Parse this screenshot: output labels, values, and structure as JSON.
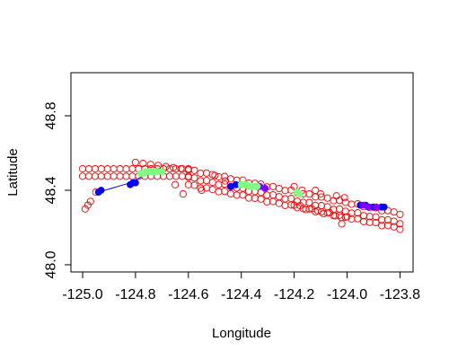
{
  "chart_data": {
    "type": "scatter",
    "title": "",
    "xlabel": "Longitude",
    "ylabel": "Latitude",
    "xlim": [
      -125.03,
      -123.78
    ],
    "ylim": [
      47.96,
      49.02
    ],
    "x_ticks": [
      -125.0,
      -124.8,
      -124.6,
      -124.4,
      -124.2,
      -124.0,
      -123.8
    ],
    "x_tick_labels": [
      "-125.0",
      "-124.8",
      "-124.6",
      "-124.4",
      "-124.2",
      "-124.0",
      "-123.8"
    ],
    "y_ticks": [
      48.0,
      48.4,
      48.8
    ],
    "y_tick_labels": [
      "48.0",
      "48.4",
      "48.8"
    ],
    "grid": false,
    "legend": "none",
    "colors": {
      "red": "#ff0000",
      "blue": "#0000ff",
      "purple": "#8000ff",
      "green": "#80ff80"
    },
    "series": [
      {
        "marker": "open-circle",
        "color": "#ff0000",
        "tracks": [
          {
            "x_start": -125.0,
            "x_end": -124.6,
            "y_start": 48.515,
            "y_end": 48.515,
            "n": 18,
            "jitter": 0.0
          },
          {
            "x_start": -125.0,
            "x_end": -124.6,
            "y_start": 48.475,
            "y_end": 48.475,
            "n": 18,
            "jitter": 0.0
          },
          {
            "x_start": -124.6,
            "x_end": -123.8,
            "y_start": 48.51,
            "y_end": 48.275,
            "n": 36,
            "jitter": 0.005
          },
          {
            "x_start": -124.6,
            "x_end": -123.8,
            "y_start": 48.47,
            "y_end": 48.225,
            "n": 36,
            "jitter": 0.005
          },
          {
            "x_start": -124.6,
            "x_end": -123.8,
            "y_start": 48.43,
            "y_end": 48.195,
            "n": 36,
            "jitter": 0.005
          },
          {
            "x_start": -124.8,
            "x_end": -124.6,
            "y_start": 48.55,
            "y_end": 48.51,
            "n": 8,
            "jitter": 0.0
          },
          {
            "x_start": -124.2,
            "x_end": -124.0,
            "y_start": 48.32,
            "y_end": 48.25,
            "n": 10,
            "jitter": 0.008
          }
        ],
        "points": [
          [
            -124.99,
            48.3
          ],
          [
            -124.98,
            48.32
          ],
          [
            -124.97,
            48.34
          ],
          [
            -124.95,
            48.39
          ],
          [
            -124.65,
            48.43
          ],
          [
            -124.62,
            48.38
          ],
          [
            -124.55,
            48.4
          ],
          [
            -124.5,
            48.48
          ],
          [
            -124.46,
            48.45
          ],
          [
            -124.2,
            48.42
          ],
          [
            -124.17,
            48.4
          ],
          [
            -124.12,
            48.4
          ],
          [
            -124.1,
            48.38
          ],
          [
            -124.04,
            48.37
          ],
          [
            -124.01,
            48.36
          ],
          [
            -124.02,
            48.22
          ]
        ]
      },
      {
        "marker": "filled-circle",
        "color": "#0000ff",
        "points": [
          [
            -124.94,
            48.39
          ],
          [
            -124.93,
            48.4
          ],
          [
            -124.82,
            48.43
          ],
          [
            -124.81,
            48.44
          ],
          [
            -124.8,
            48.44
          ],
          [
            -124.44,
            48.42
          ],
          [
            -124.42,
            48.43
          ],
          [
            -123.95,
            48.32
          ],
          [
            -123.93,
            48.32
          ],
          [
            -123.9,
            48.31
          ],
          [
            -123.87,
            48.31
          ],
          [
            -123.86,
            48.31
          ]
        ],
        "connectors": [
          [
            [
              -124.94,
              48.39
            ],
            [
              -124.82,
              48.44
            ]
          ],
          [
            [
              -124.82,
              48.44
            ],
            [
              -124.74,
              48.5
            ]
          ],
          [
            [
              -124.34,
              48.42
            ],
            [
              -124.31,
              48.41
            ]
          ],
          [
            [
              -123.95,
              48.32
            ],
            [
              -123.86,
              48.31
            ]
          ]
        ]
      },
      {
        "marker": "filled-circle",
        "color": "#8000ff",
        "points": [
          [
            -124.33,
            48.42
          ],
          [
            -124.31,
            48.41
          ],
          [
            -123.94,
            48.32
          ],
          [
            -123.92,
            48.31
          ],
          [
            -123.89,
            48.31
          ]
        ]
      },
      {
        "marker": "filled-circle",
        "color": "#80ff80",
        "points": [
          [
            -124.78,
            48.49
          ],
          [
            -124.77,
            48.49
          ],
          [
            -124.76,
            48.5
          ],
          [
            -124.75,
            48.5
          ],
          [
            -124.74,
            48.5
          ],
          [
            -124.73,
            48.5
          ],
          [
            -124.72,
            48.5
          ],
          [
            -124.7,
            48.5
          ],
          [
            -124.4,
            48.43
          ],
          [
            -124.39,
            48.43
          ],
          [
            -124.38,
            48.43
          ],
          [
            -124.37,
            48.42
          ],
          [
            -124.36,
            48.42
          ],
          [
            -124.35,
            48.42
          ],
          [
            -124.34,
            48.42
          ],
          [
            -124.19,
            48.39
          ],
          [
            -124.18,
            48.38
          ]
        ]
      }
    ]
  }
}
